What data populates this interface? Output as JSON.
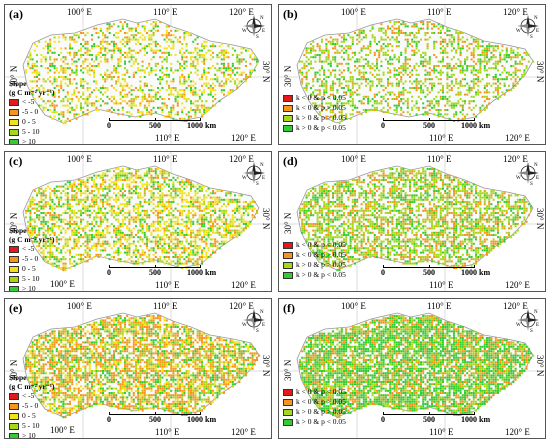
{
  "panels": [
    {
      "id": "a",
      "label": "(a)",
      "legend_type": "slope"
    },
    {
      "id": "b",
      "label": "(b)",
      "legend_type": "sig"
    },
    {
      "id": "c",
      "label": "(c)",
      "legend_type": "slope"
    },
    {
      "id": "d",
      "label": "(d)",
      "legend_type": "sig"
    },
    {
      "id": "e",
      "label": "(e)",
      "legend_type": "slope"
    },
    {
      "id": "f",
      "label": "(f)",
      "legend_type": "sig"
    }
  ],
  "axes": {
    "top_lon": [
      "100° E",
      "110° E",
      "120° E"
    ],
    "bottom_lon": [
      "110° E",
      "120° E"
    ],
    "bottom_left_lon": "100° E",
    "lat_left": "30° N",
    "lat_right": "30° N"
  },
  "legend_slope": {
    "title_line1": "Slope",
    "title_line2": "(g C m⁻² yr⁻¹)",
    "items": [
      {
        "label": "< -5",
        "color": "#e31a1c"
      },
      {
        "label": "-5 - 0",
        "color": "#f7941d"
      },
      {
        "label": "0 - 5",
        "color": "#f2e21c"
      },
      {
        "label": "5 - 10",
        "color": "#a6d81a"
      },
      {
        "label": "> 10",
        "color": "#33cc33"
      }
    ]
  },
  "legend_sig": {
    "items": [
      {
        "label": "k < 0 & p < 0.05",
        "color": "#e31a1c"
      },
      {
        "label": "k < 0 & p > 0.05",
        "color": "#f7941d"
      },
      {
        "label": "k > 0 & p > 0.05",
        "color": "#a6d81a"
      },
      {
        "label": "k > 0 & p < 0.05",
        "color": "#33cc33"
      }
    ]
  },
  "scale": {
    "ticks": [
      "0",
      "500",
      "1000 km"
    ]
  },
  "compass": {
    "n": "N",
    "s": "S",
    "e": "E",
    "w": "W"
  }
}
